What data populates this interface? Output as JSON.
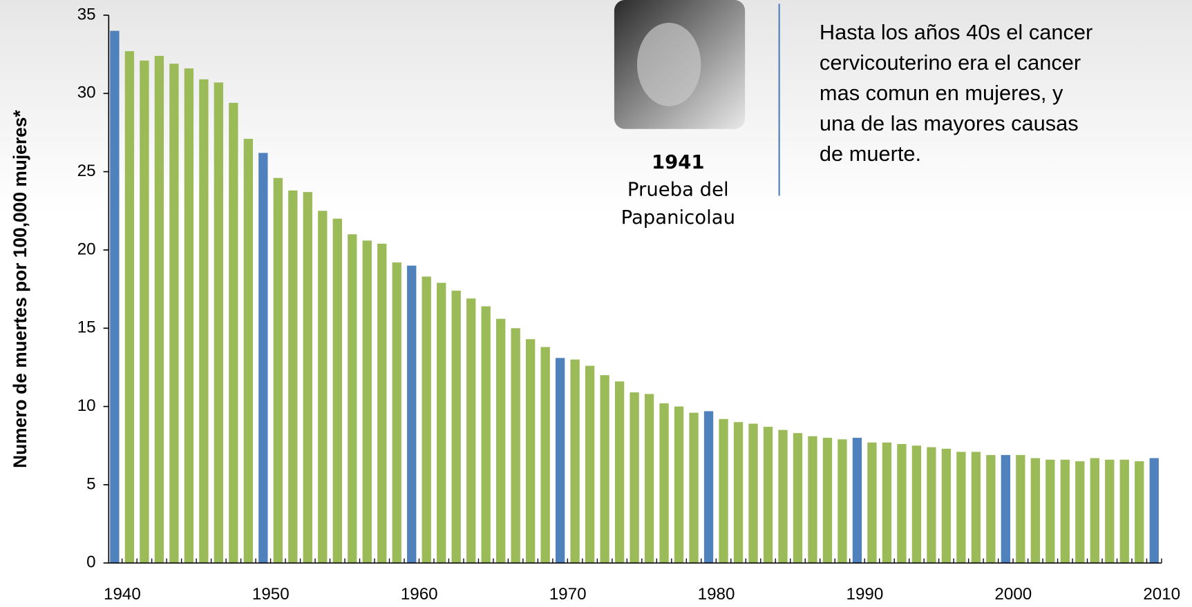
{
  "chart_data": {
    "type": "bar",
    "y_label": "Numero de muertes por 100,000 mujeres*",
    "x": [
      1940,
      1941,
      1942,
      1943,
      1944,
      1945,
      1946,
      1947,
      1948,
      1949,
      1950,
      1951,
      1952,
      1953,
      1954,
      1955,
      1956,
      1957,
      1958,
      1959,
      1960,
      1961,
      1962,
      1963,
      1964,
      1965,
      1966,
      1967,
      1968,
      1969,
      1970,
      1971,
      1972,
      1973,
      1974,
      1975,
      1976,
      1977,
      1978,
      1979,
      1980,
      1981,
      1982,
      1983,
      1984,
      1985,
      1986,
      1987,
      1988,
      1989,
      1990,
      1991,
      1992,
      1993,
      1994,
      1995,
      1996,
      1997,
      1998,
      1999,
      2000,
      2001,
      2002,
      2003,
      2004,
      2005,
      2006,
      2007,
      2008,
      2009,
      2010
    ],
    "values": [
      34.0,
      32.7,
      32.1,
      32.4,
      31.9,
      31.6,
      30.9,
      30.7,
      29.4,
      27.1,
      26.2,
      24.6,
      23.8,
      23.7,
      22.5,
      22.0,
      21.0,
      20.6,
      20.4,
      19.2,
      19.0,
      18.3,
      17.9,
      17.4,
      16.9,
      16.4,
      15.6,
      15.0,
      14.3,
      13.8,
      13.1,
      13.0,
      12.6,
      12.0,
      11.6,
      10.9,
      10.8,
      10.2,
      10.0,
      9.6,
      9.7,
      9.2,
      9.0,
      8.9,
      8.7,
      8.5,
      8.3,
      8.1,
      8.0,
      7.9,
      8.0,
      7.7,
      7.7,
      7.6,
      7.5,
      7.4,
      7.3,
      7.1,
      7.1,
      6.9,
      6.9,
      6.9,
      6.7,
      6.6,
      6.6,
      6.5,
      6.7,
      6.6,
      6.6,
      6.5,
      6.7
    ],
    "colors": [
      "#4f81bd",
      "#9bbb59",
      "#9bbb59",
      "#9bbb59",
      "#9bbb59",
      "#9bbb59",
      "#9bbb59",
      "#9bbb59",
      "#9bbb59",
      "#9bbb59",
      "#4f81bd",
      "#9bbb59",
      "#9bbb59",
      "#9bbb59",
      "#9bbb59",
      "#9bbb59",
      "#9bbb59",
      "#9bbb59",
      "#9bbb59",
      "#9bbb59",
      "#4f81bd",
      "#9bbb59",
      "#9bbb59",
      "#9bbb59",
      "#9bbb59",
      "#9bbb59",
      "#9bbb59",
      "#9bbb59",
      "#9bbb59",
      "#9bbb59",
      "#4f81bd",
      "#9bbb59",
      "#9bbb59",
      "#9bbb59",
      "#9bbb59",
      "#9bbb59",
      "#9bbb59",
      "#9bbb59",
      "#9bbb59",
      "#9bbb59",
      "#4f81bd",
      "#9bbb59",
      "#9bbb59",
      "#9bbb59",
      "#9bbb59",
      "#9bbb59",
      "#9bbb59",
      "#9bbb59",
      "#9bbb59",
      "#9bbb59",
      "#4f81bd",
      "#9bbb59",
      "#9bbb59",
      "#9bbb59",
      "#9bbb59",
      "#9bbb59",
      "#9bbb59",
      "#9bbb59",
      "#9bbb59",
      "#9bbb59",
      "#4f81bd",
      "#9bbb59",
      "#9bbb59",
      "#9bbb59",
      "#9bbb59",
      "#9bbb59",
      "#9bbb59",
      "#9bbb59",
      "#9bbb59",
      "#9bbb59",
      "#4f81bd"
    ],
    "xlim": [
      1939.6,
      2010.5
    ],
    "xticks": [
      1940,
      1950,
      1960,
      1970,
      1980,
      1990,
      2000,
      2010
    ],
    "ylim": [
      0,
      35
    ],
    "yticks": [
      0,
      5,
      10,
      15,
      20,
      25,
      30,
      35
    ],
    "annotation": {
      "year": "1941",
      "lines": [
        "Prueba del",
        "Papanicolau"
      ]
    },
    "note": [
      "Hasta los años 40s el cancer",
      "cervicouterino era el cancer",
      "mas comun en mujeres, y",
      "una de las mayores causas",
      "de muerte."
    ]
  }
}
